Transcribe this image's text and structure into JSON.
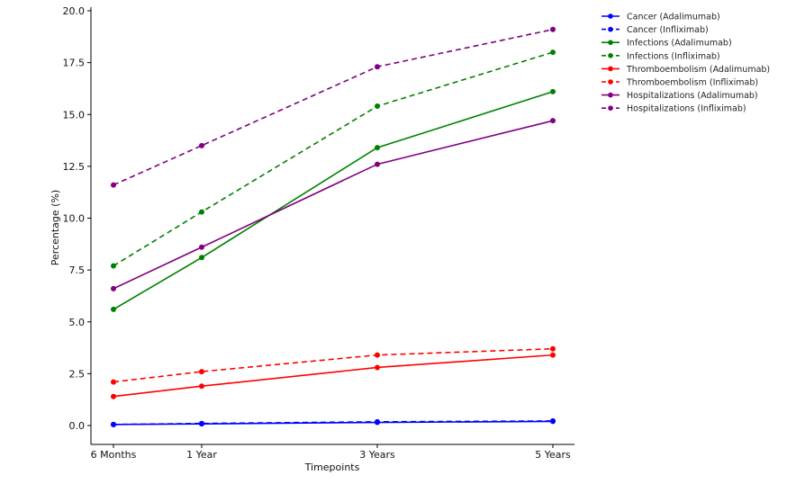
{
  "chart_data": {
    "type": "line",
    "xlabel": "Timepoints",
    "ylabel": "Percentage (%)",
    "categories": [
      "6 Months",
      "1 Year",
      "3 Years",
      "5 Years"
    ],
    "x": [
      0.5,
      1,
      3,
      5
    ],
    "ylim": [
      -0.8,
      20.0
    ],
    "yticks": [
      "0.0",
      "2.5",
      "5.0",
      "7.5",
      "10.0",
      "12.5",
      "15.0",
      "17.5",
      "20.0"
    ],
    "grid": false,
    "legend_position": "top-right, outside plot",
    "series": [
      {
        "name": "Cancer (Adalimumab)",
        "color": "#0000ff",
        "dashed": false,
        "values": [
          0.05,
          0.08,
          0.15,
          0.2
        ]
      },
      {
        "name": "Cancer (Infliximab)",
        "color": "#0000ff",
        "dashed": true,
        "values": [
          0.05,
          0.1,
          0.18,
          0.22
        ]
      },
      {
        "name": "Infections (Adalimumab)",
        "color": "#008000",
        "dashed": false,
        "values": [
          5.6,
          8.1,
          13.4,
          16.1
        ]
      },
      {
        "name": "Infections (Infliximab)",
        "color": "#008000",
        "dashed": true,
        "values": [
          7.7,
          10.3,
          15.4,
          18.0
        ]
      },
      {
        "name": "Thromboembolism (Adalimumab)",
        "color": "#ff0000",
        "dashed": false,
        "values": [
          1.4,
          1.9,
          2.8,
          3.4
        ]
      },
      {
        "name": "Thromboembolism (Infliximab)",
        "color": "#ff0000",
        "dashed": true,
        "values": [
          2.1,
          2.6,
          3.4,
          3.7
        ]
      },
      {
        "name": "Hospitalizations (Adalimumab)",
        "color": "#800080",
        "dashed": false,
        "values": [
          6.6,
          8.6,
          12.6,
          14.7
        ]
      },
      {
        "name": "Hospitalizations (Infliximab)",
        "color": "#800080",
        "dashed": true,
        "values": [
          11.6,
          13.5,
          17.3,
          19.1
        ]
      }
    ]
  }
}
